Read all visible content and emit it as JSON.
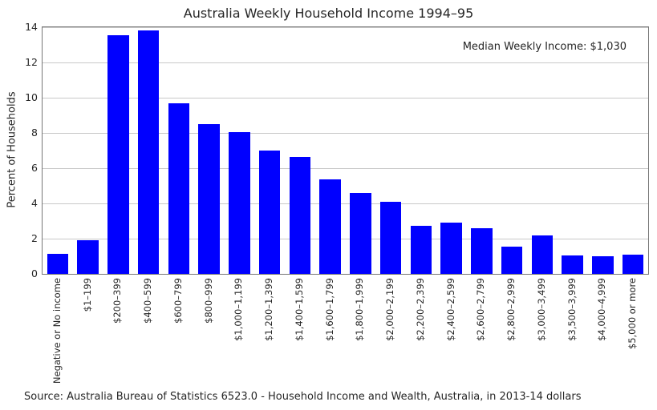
{
  "colors": {
    "bar": "#0000ff",
    "grid": "#c9c9c9",
    "spine": "#767676",
    "text": "#262626",
    "background": "#ffffff"
  },
  "chart_data": {
    "type": "bar",
    "title": "Australia Weekly Household Income 1994–95",
    "xlabel": "",
    "ylabel": "Percent of Households",
    "ylim": [
      0,
      14
    ],
    "yticks": [
      0,
      2,
      4,
      6,
      8,
      10,
      12,
      14
    ],
    "grid": "horizontal gridlines",
    "legend": "none",
    "bar_color": "#0000ff",
    "annotation": "Median Weekly Income: $1,030",
    "source_note": "Source: Australia Bureau of Statistics 6523.0 - Household Income and Wealth, Australia, in 2013-14 dollars",
    "categories": [
      "Negative or No income",
      "$1–199",
      "$200–399",
      "$400–599",
      "$600–799",
      "$800–999",
      "$1,000–1,199",
      "$1,200–1,399",
      "$1,400–1,599",
      "$1,600–1,799",
      "$1,800–1,999",
      "$2,000–2,199",
      "$2,200–2,399",
      "$2,400–2,599",
      "$2,600–2,799",
      "$2,800–2,999",
      "$3,000–3,499",
      "$3,500–3,999",
      "$4,000–4,999",
      "$5,000 or more"
    ],
    "values": [
      1.15,
      1.9,
      13.55,
      13.8,
      9.7,
      8.5,
      8.05,
      7.0,
      6.65,
      5.35,
      4.6,
      4.1,
      2.75,
      2.9,
      2.6,
      1.55,
      2.2,
      1.05,
      1.0,
      1.1
    ]
  }
}
